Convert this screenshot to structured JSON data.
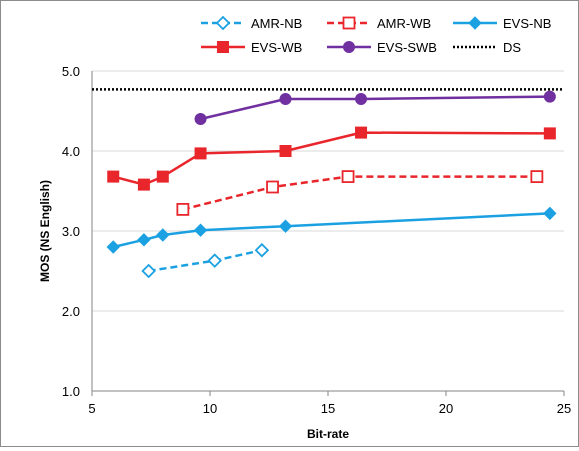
{
  "chart_data": {
    "type": "line",
    "title": "",
    "xlabel": "Bit-rate",
    "ylabel": "MOS (NS English)",
    "xlim": [
      5,
      25
    ],
    "ylim": [
      1.0,
      5.0
    ],
    "xticks": [
      5,
      10,
      15,
      20,
      25
    ],
    "yticks": [
      1.0,
      2.0,
      3.0,
      4.0,
      5.0
    ],
    "xtick_labels": [
      "5",
      "10",
      "15",
      "20",
      "25"
    ],
    "ytick_labels": [
      "1.0",
      "2.0",
      "3.0",
      "4.0",
      "5.0"
    ],
    "grid": "horizontal",
    "legend_position": "top",
    "series": [
      {
        "name": "AMR-NB",
        "color": "#1BA1E2",
        "dash": "dashed",
        "marker": "diamond-open",
        "x": [
          7.4,
          10.2,
          12.2
        ],
        "y": [
          2.5,
          2.63,
          2.76
        ]
      },
      {
        "name": "AMR-WB",
        "color": "#E8262B",
        "dash": "dashed",
        "marker": "square-open",
        "x": [
          8.85,
          12.65,
          15.85,
          23.85
        ],
        "y": [
          3.27,
          3.55,
          3.68,
          3.68
        ]
      },
      {
        "name": "EVS-NB",
        "color": "#1BA1E2",
        "dash": "solid",
        "marker": "diamond",
        "x": [
          5.9,
          7.2,
          8.0,
          9.6,
          13.2,
          24.4
        ],
        "y": [
          2.8,
          2.89,
          2.95,
          3.01,
          3.06,
          3.22
        ]
      },
      {
        "name": "EVS-WB",
        "color": "#E8262B",
        "dash": "solid",
        "marker": "square",
        "x": [
          5.9,
          7.2,
          8.0,
          9.6,
          13.2,
          16.4,
          24.4
        ],
        "y": [
          3.68,
          3.58,
          3.68,
          3.97,
          4.0,
          4.23,
          4.22
        ]
      },
      {
        "name": "EVS-SWB",
        "color": "#7030A0",
        "dash": "solid",
        "marker": "circle",
        "x": [
          9.6,
          13.2,
          16.4,
          24.4
        ],
        "y": [
          4.4,
          4.65,
          4.65,
          4.68
        ]
      },
      {
        "name": "DS",
        "color": "#000000",
        "dash": "dotted",
        "marker": "none",
        "x": [
          5,
          25
        ],
        "y": [
          4.77,
          4.77
        ]
      }
    ]
  }
}
